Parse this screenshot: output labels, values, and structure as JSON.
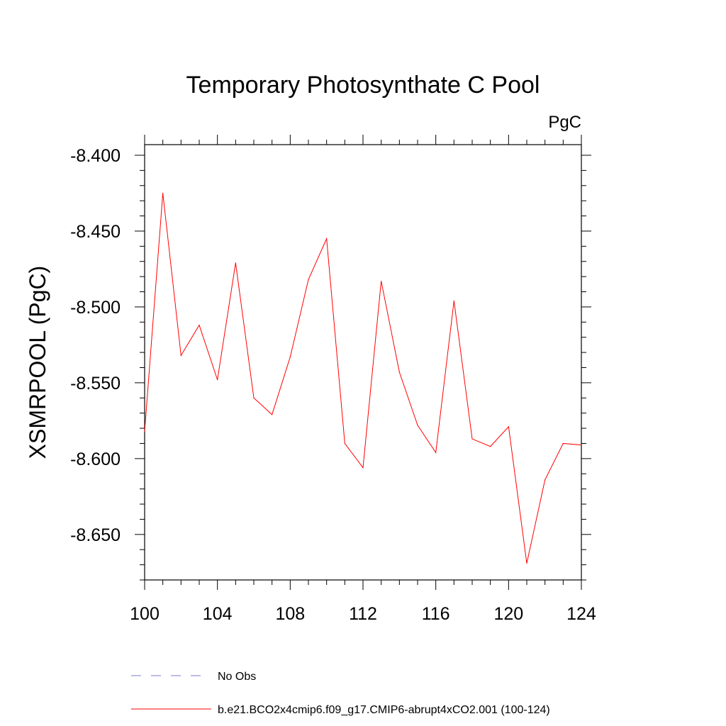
{
  "chart_data": {
    "type": "line",
    "title": "Temporary Photosynthate C Pool",
    "units": "PgC",
    "xlabel": "",
    "ylabel": "XSMRPOOL  (PgC)",
    "xlim": [
      100,
      124
    ],
    "ylim": [
      -8.68,
      -8.393
    ],
    "x_ticks": [
      100,
      104,
      108,
      112,
      116,
      120,
      124
    ],
    "x_tick_labels": [
      "100",
      "104",
      "108",
      "112",
      "116",
      "120",
      "124"
    ],
    "y_ticks": [
      -8.4,
      -8.45,
      -8.5,
      -8.55,
      -8.6,
      -8.65
    ],
    "y_tick_labels": [
      "-8.400",
      "-8.450",
      "-8.500",
      "-8.550",
      "-8.600",
      "-8.650"
    ],
    "x": [
      100,
      101,
      102,
      103,
      104,
      105,
      106,
      107,
      108,
      109,
      110,
      111,
      112,
      113,
      114,
      115,
      116,
      117,
      118,
      119,
      120,
      121,
      122,
      123,
      124
    ],
    "series": [
      {
        "name": "b.e21.BCO2x4cmip6.f09_g17.CMIP6-abrupt4xCO2.001 (100-124)",
        "color": "#ff0000",
        "values": [
          -8.582,
          -8.425,
          -8.532,
          -8.512,
          -8.548,
          -8.471,
          -8.56,
          -8.571,
          -8.533,
          -8.482,
          -8.455,
          -8.59,
          -8.606,
          -8.483,
          -8.543,
          -8.578,
          -8.596,
          -8.496,
          -8.587,
          -8.592,
          -8.579,
          -8.669,
          -8.614,
          -8.59,
          -8.591
        ]
      }
    ],
    "legend": [
      {
        "label": "No Obs",
        "style": "dashed",
        "color": "#7b7bd6"
      },
      {
        "label": "b.e21.BCO2x4cmip6.f09_g17.CMIP6-abrupt4xCO2.001 (100-124)",
        "style": "solid",
        "color": "#ff0000"
      }
    ]
  }
}
